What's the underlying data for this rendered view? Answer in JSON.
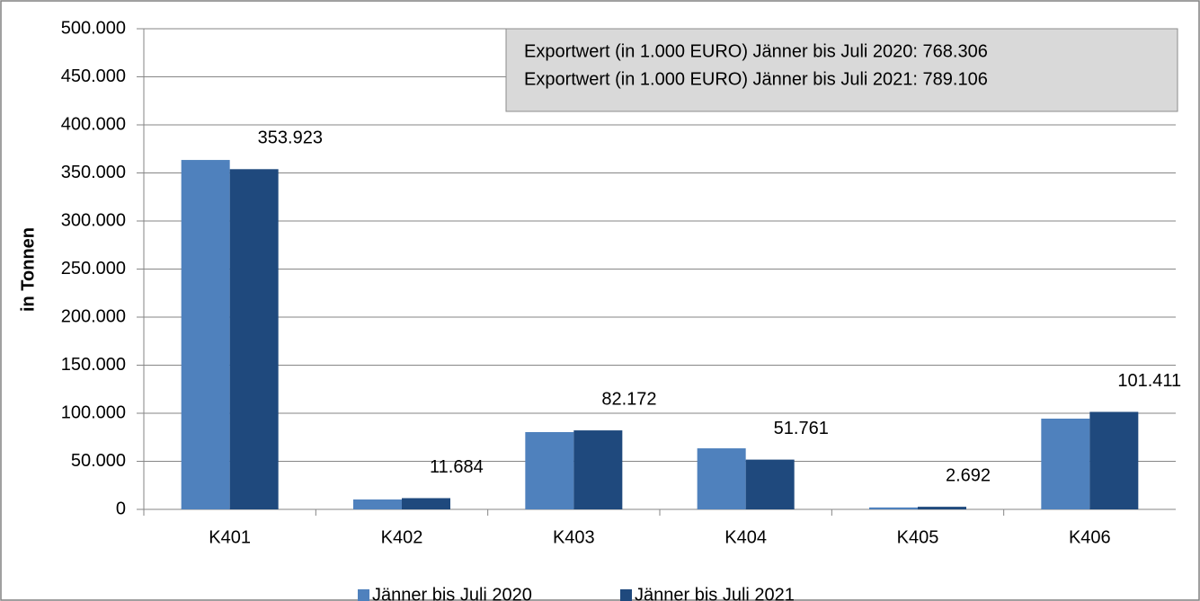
{
  "chart_data": {
    "type": "bar",
    "y_label": "in Tonnen",
    "annotation": [
      "Exportwert (in 1.000 EURO) Jänner bis Juli 2020: 768.306",
      "Exportwert (in 1.000 EURO) Jänner bis Juli 2021: 789.106"
    ],
    "categories": [
      "K401",
      "K402",
      "K403",
      "K404",
      "K405",
      "K406"
    ],
    "series": [
      {
        "name": "Jänner bis Juli 2020",
        "color": "#4f81bd",
        "values": [
          363500,
          10300,
          80400,
          63500,
          2000,
          94400
        ]
      },
      {
        "name": "Jänner bis Juli 2021",
        "color": "#1f497d",
        "values": [
          353923,
          11684,
          82172,
          51761,
          2692,
          101411
        ],
        "value_labels": [
          "353.923",
          "11.684",
          "82.172",
          "51.761",
          "2.692",
          "101.411"
        ]
      }
    ],
    "ylim": [
      0,
      500000
    ],
    "yticks": [
      0,
      {
        "value": 50000,
        "label": "50.000"
      },
      {
        "value": 100000,
        "label": "100.000"
      },
      {
        "value": 150000,
        "label": "150.000"
      },
      {
        "value": 200000,
        "label": "200.000"
      },
      {
        "value": 250000,
        "label": "250.000"
      },
      {
        "value": 300000,
        "label": "300.000"
      },
      {
        "value": 350000,
        "label": "350.000"
      },
      {
        "value": 400000,
        "label": "400.000"
      },
      {
        "value": 450000,
        "label": "450.000"
      },
      {
        "value": 500000,
        "label": "500.000"
      }
    ],
    "grid": true,
    "legend": "bottom"
  }
}
